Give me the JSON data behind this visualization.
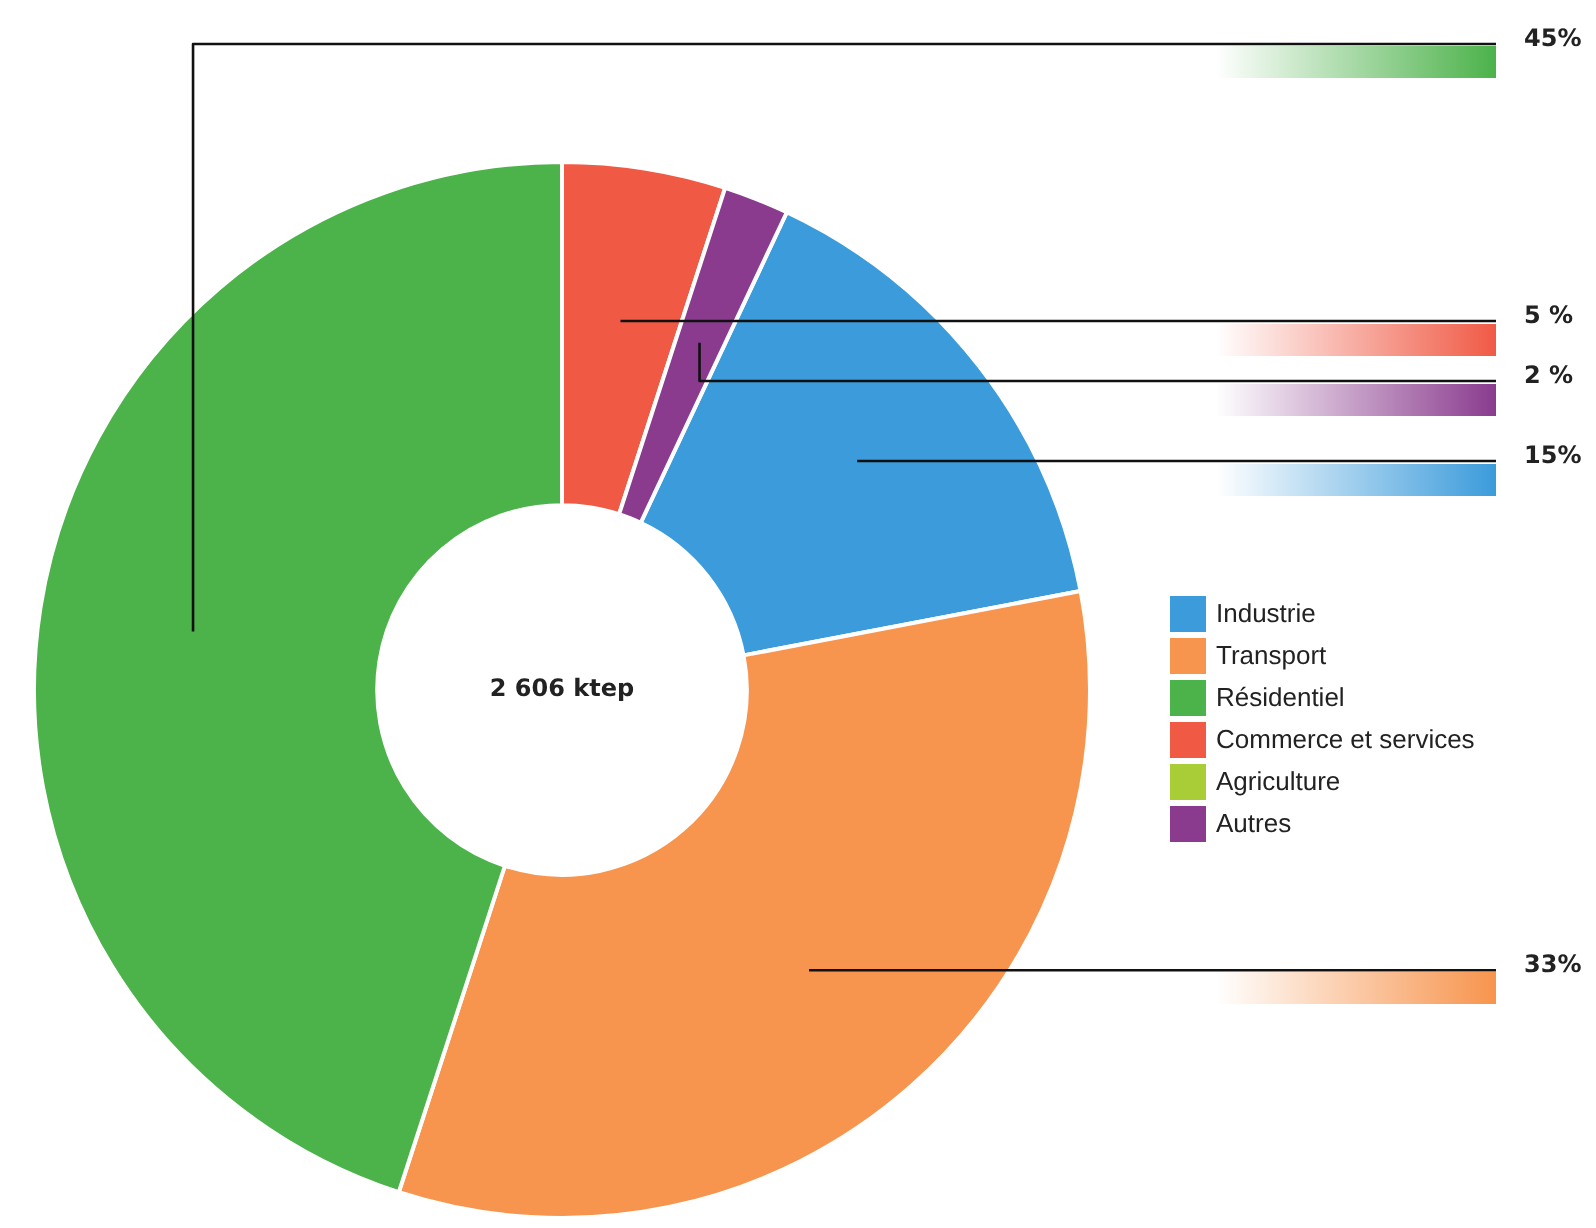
{
  "chart_data": {
    "type": "donut",
    "categories": [
      "Industrie",
      "Transport",
      "Résidentiel",
      "Commerce et services",
      "Agriculture",
      "Autres"
    ],
    "values": [
      15,
      33,
      45,
      5,
      0,
      2
    ],
    "colors": [
      "#3b9bdb",
      "#f7944d",
      "#4cb24a",
      "#f05a45",
      "#a9cd36",
      "#8a3b8e"
    ],
    "value_labels": [
      "15%",
      "33%",
      "45%",
      "5 %",
      null,
      "2 %"
    ],
    "annotations": [
      "2 606 ktep"
    ],
    "legend": "right"
  }
}
